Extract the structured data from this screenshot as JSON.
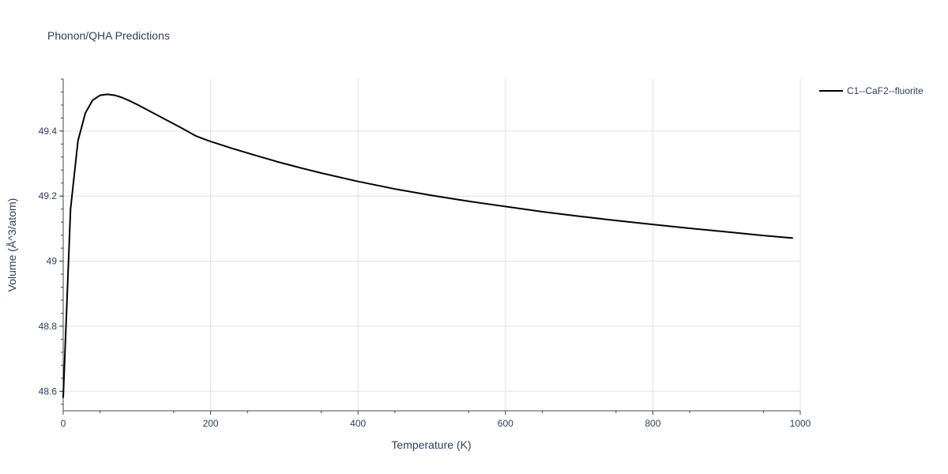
{
  "chart_data": {
    "type": "line",
    "title": "Phonon/QHA Predictions",
    "xlabel": "Temperature (K)",
    "ylabel": "Volume (Å^3/atom)",
    "xlim": [
      0,
      1000
    ],
    "ylim": [
      48.54,
      49.56
    ],
    "x_ticks": [
      0,
      200,
      400,
      600,
      800,
      1000
    ],
    "y_ticks": [
      48.6,
      48.8,
      49,
      49.2,
      49.4
    ],
    "x_tick_labels": [
      "0",
      "200",
      "400",
      "600",
      "800",
      "1000"
    ],
    "y_tick_labels": [
      "48.6",
      "48.8",
      "49",
      "49.2",
      "49.4"
    ],
    "grid": true,
    "legend_position": "top-right",
    "series": [
      {
        "name": "C1--CaF2--fluorite",
        "color": "#000000",
        "x": [
          0,
          10,
          20,
          30,
          40,
          50,
          60,
          70,
          80,
          90,
          100,
          120,
          140,
          160,
          180,
          200,
          230,
          260,
          290,
          320,
          350,
          400,
          450,
          500,
          550,
          600,
          650,
          700,
          750,
          800,
          850,
          900,
          950,
          990
        ],
        "y": [
          48.58,
          49.16,
          49.37,
          49.455,
          49.495,
          49.51,
          49.513,
          49.51,
          49.503,
          49.493,
          49.482,
          49.458,
          49.434,
          49.41,
          49.385,
          49.368,
          49.346,
          49.326,
          49.306,
          49.288,
          49.271,
          49.245,
          49.222,
          49.202,
          49.184,
          49.168,
          49.152,
          49.138,
          49.125,
          49.113,
          49.101,
          49.09,
          49.079,
          49.071
        ]
      }
    ]
  }
}
